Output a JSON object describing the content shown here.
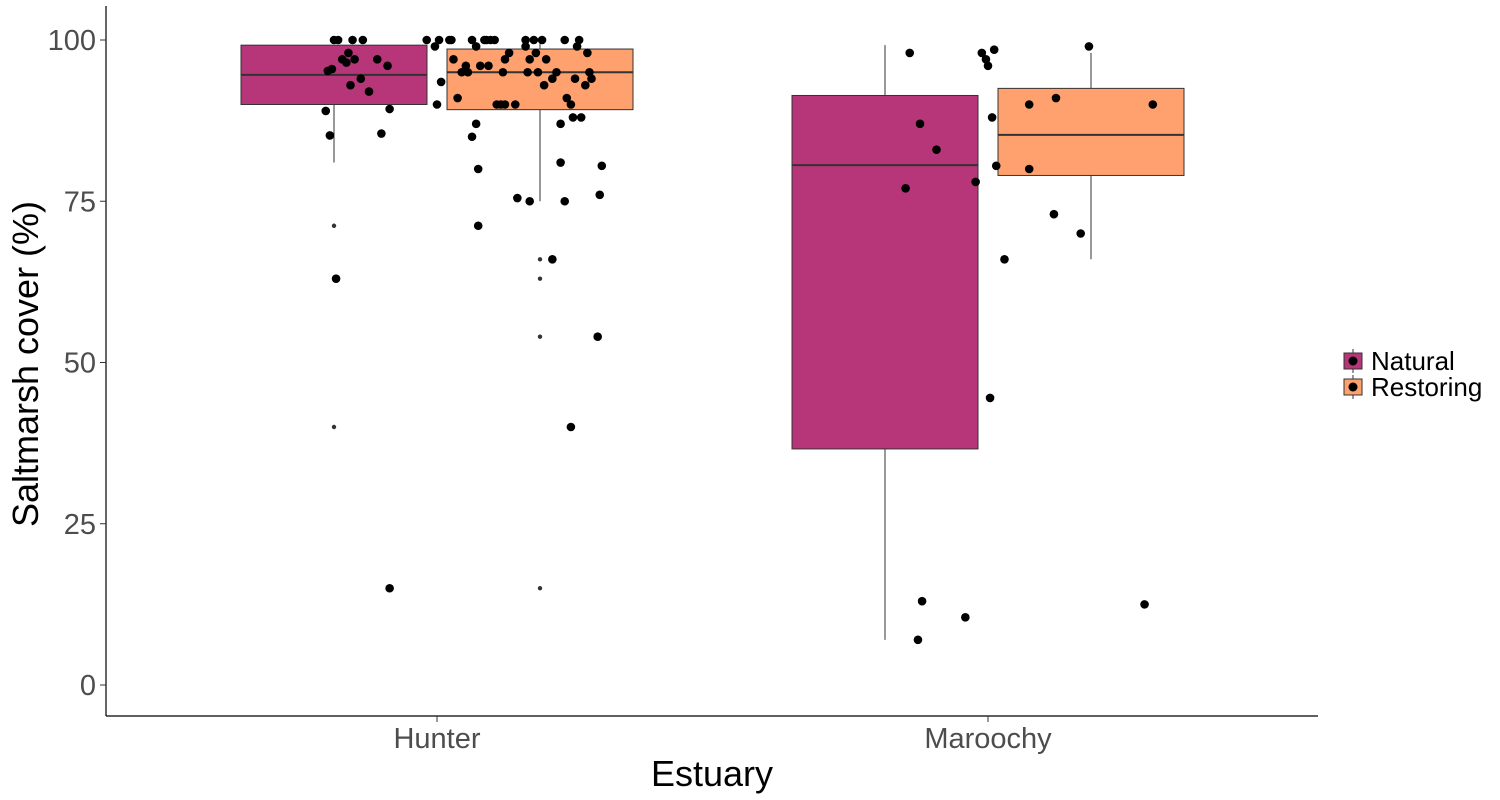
{
  "chart_data": {
    "type": "box",
    "xlabel": "Estuary",
    "ylabel": "Saltmarsh cover (%)",
    "categories": [
      "Hunter",
      "Maroochy"
    ],
    "ylim": [
      -5,
      105
    ],
    "yticks": [
      0,
      25,
      50,
      75,
      100
    ],
    "grid": false,
    "legend_position": "right",
    "legend": {
      "entries": [
        "Natural",
        "Restoring"
      ]
    },
    "colors": {
      "Natural": "#b63679",
      "Restoring": "#fea16e",
      "points": "#000000",
      "axis": "#000000",
      "tick_text": "#4d4d4d"
    },
    "series": [
      {
        "name": "Natural",
        "boxes": [
          {
            "category": "Hunter",
            "q1": 90,
            "median": 94.6,
            "q3": 99.2,
            "whisker_low": 81,
            "whisker_high": 99.2,
            "outliers": [
              71.2,
              40
            ]
          },
          {
            "category": "Maroochy",
            "q1": 36.6,
            "median": 80.6,
            "q3": 91.4,
            "whisker_low": 7,
            "whisker_high": 99.2,
            "outliers": []
          }
        ]
      },
      {
        "name": "Restoring",
        "boxes": [
          {
            "category": "Hunter",
            "q1": 89.2,
            "median": 95.0,
            "q3": 98.6,
            "whisker_low": 75,
            "whisker_high": 100,
            "outliers": [
              66,
              63,
              54,
              15
            ]
          },
          {
            "category": "Maroochy",
            "q1": 79,
            "median": 85.3,
            "q3": 92.5,
            "whisker_low": 66,
            "whisker_high": 98,
            "outliers": []
          }
        ]
      }
    ],
    "jitter_points": [
      {
        "category": "Hunter",
        "x": -0.5,
        "y": 100
      },
      {
        "category": "Hunter",
        "x": -0.48,
        "y": 100
      },
      {
        "category": "Hunter",
        "x": -0.46,
        "y": 97
      },
      {
        "category": "Hunter",
        "x": -0.44,
        "y": 96.5
      },
      {
        "category": "Hunter",
        "x": -0.43,
        "y": 98
      },
      {
        "category": "Hunter",
        "x": -0.42,
        "y": 93
      },
      {
        "category": "Hunter",
        "x": -0.41,
        "y": 100
      },
      {
        "category": "Hunter",
        "x": -0.4,
        "y": 97
      },
      {
        "category": "Hunter",
        "x": -0.37,
        "y": 94
      },
      {
        "category": "Hunter",
        "x": -0.36,
        "y": 100
      },
      {
        "category": "Hunter",
        "x": -0.33,
        "y": 92
      },
      {
        "category": "Hunter",
        "x": -0.29,
        "y": 97
      },
      {
        "category": "Hunter",
        "x": -0.27,
        "y": 85.5
      },
      {
        "category": "Hunter",
        "x": -0.24,
        "y": 96
      },
      {
        "category": "Hunter",
        "x": -0.23,
        "y": 89.3
      },
      {
        "category": "Hunter",
        "x": -0.23,
        "y": 15
      },
      {
        "category": "Hunter",
        "x": -0.53,
        "y": 95.2
      },
      {
        "category": "Hunter",
        "x": -0.54,
        "y": 89
      },
      {
        "category": "Hunter",
        "x": -0.52,
        "y": 85.2
      },
      {
        "category": "Hunter",
        "x": -0.51,
        "y": 95.5
      },
      {
        "category": "Hunter",
        "x": -0.49,
        "y": 63
      },
      {
        "category": "Hunter",
        "x": -0.05,
        "y": 100
      },
      {
        "category": "Hunter",
        "x": -0.01,
        "y": 99
      },
      {
        "category": "Hunter",
        "x": 0.01,
        "y": 100
      },
      {
        "category": "Hunter",
        "x": 0.0,
        "y": 90
      },
      {
        "category": "Hunter",
        "x": 0.02,
        "y": 93.5
      },
      {
        "category": "Hunter",
        "x": 0.06,
        "y": 100
      },
      {
        "category": "Hunter",
        "x": 0.07,
        "y": 100
      },
      {
        "category": "Hunter",
        "x": 0.08,
        "y": 97
      },
      {
        "category": "Hunter",
        "x": 0.1,
        "y": 91
      },
      {
        "category": "Hunter",
        "x": 0.12,
        "y": 95
      },
      {
        "category": "Hunter",
        "x": 0.14,
        "y": 96
      },
      {
        "category": "Hunter",
        "x": 0.15,
        "y": 95
      },
      {
        "category": "Hunter",
        "x": 0.17,
        "y": 85
      },
      {
        "category": "Hunter",
        "x": 0.19,
        "y": 99
      },
      {
        "category": "Hunter",
        "x": 0.17,
        "y": 100
      },
      {
        "category": "Hunter",
        "x": 0.19,
        "y": 87
      },
      {
        "category": "Hunter",
        "x": 0.2,
        "y": 80
      },
      {
        "category": "Hunter",
        "x": 0.2,
        "y": 71.2
      },
      {
        "category": "Hunter",
        "x": 0.21,
        "y": 96
      },
      {
        "category": "Hunter",
        "x": 0.23,
        "y": 100
      },
      {
        "category": "Hunter",
        "x": 0.24,
        "y": 100
      },
      {
        "category": "Hunter",
        "x": 0.25,
        "y": 96
      },
      {
        "category": "Hunter",
        "x": 0.26,
        "y": 100
      },
      {
        "category": "Hunter",
        "x": 0.28,
        "y": 100
      },
      {
        "category": "Hunter",
        "x": 0.29,
        "y": 90
      },
      {
        "category": "Hunter",
        "x": 0.31,
        "y": 90
      },
      {
        "category": "Hunter",
        "x": 0.32,
        "y": 95
      },
      {
        "category": "Hunter",
        "x": 0.33,
        "y": 97
      },
      {
        "category": "Hunter",
        "x": 0.33,
        "y": 90
      },
      {
        "category": "Hunter",
        "x": 0.35,
        "y": 98
      },
      {
        "category": "Hunter",
        "x": 0.38,
        "y": 90
      },
      {
        "category": "Hunter",
        "x": 0.39,
        "y": 75.5
      },
      {
        "category": "Hunter",
        "x": 0.43,
        "y": 100
      },
      {
        "category": "Hunter",
        "x": 0.43,
        "y": 99
      },
      {
        "category": "Hunter",
        "x": 0.44,
        "y": 95
      },
      {
        "category": "Hunter",
        "x": 0.45,
        "y": 97
      },
      {
        "category": "Hunter",
        "x": 0.45,
        "y": 75
      },
      {
        "category": "Hunter",
        "x": 0.47,
        "y": 100
      },
      {
        "category": "Hunter",
        "x": 0.48,
        "y": 98
      },
      {
        "category": "Hunter",
        "x": 0.49,
        "y": 95
      },
      {
        "category": "Hunter",
        "x": 0.51,
        "y": 100
      },
      {
        "category": "Hunter",
        "x": 0.52,
        "y": 93
      },
      {
        "category": "Hunter",
        "x": 0.53,
        "y": 97
      },
      {
        "category": "Hunter",
        "x": 0.56,
        "y": 66
      },
      {
        "category": "Hunter",
        "x": 0.56,
        "y": 94
      },
      {
        "category": "Hunter",
        "x": 0.58,
        "y": 95
      },
      {
        "category": "Hunter",
        "x": 0.6,
        "y": 87
      },
      {
        "category": "Hunter",
        "x": 0.6,
        "y": 81
      },
      {
        "category": "Hunter",
        "x": 0.62,
        "y": 75
      },
      {
        "category": "Hunter",
        "x": 0.62,
        "y": 100
      },
      {
        "category": "Hunter",
        "x": 0.63,
        "y": 91
      },
      {
        "category": "Hunter",
        "x": 0.65,
        "y": 90
      },
      {
        "category": "Hunter",
        "x": 0.65,
        "y": 40
      },
      {
        "category": "Hunter",
        "x": 0.66,
        "y": 88
      },
      {
        "category": "Hunter",
        "x": 0.67,
        "y": 94
      },
      {
        "category": "Hunter",
        "x": 0.68,
        "y": 99
      },
      {
        "category": "Hunter",
        "x": 0.69,
        "y": 100
      },
      {
        "category": "Hunter",
        "x": 0.7,
        "y": 88
      },
      {
        "category": "Hunter",
        "x": 0.72,
        "y": 93
      },
      {
        "category": "Hunter",
        "x": 0.73,
        "y": 98
      },
      {
        "category": "Hunter",
        "x": 0.74,
        "y": 95
      },
      {
        "category": "Hunter",
        "x": 0.75,
        "y": 94
      },
      {
        "category": "Hunter",
        "x": 0.78,
        "y": 54
      },
      {
        "category": "Hunter",
        "x": 0.79,
        "y": 76
      },
      {
        "category": "Hunter",
        "x": 0.8,
        "y": 80.5
      },
      {
        "category": "Maroochy",
        "x": -0.4,
        "y": 77
      },
      {
        "category": "Maroochy",
        "x": -0.38,
        "y": 98
      },
      {
        "category": "Maroochy",
        "x": -0.34,
        "y": 7
      },
      {
        "category": "Maroochy",
        "x": -0.33,
        "y": 87
      },
      {
        "category": "Maroochy",
        "x": -0.32,
        "y": 13
      },
      {
        "category": "Maroochy",
        "x": -0.25,
        "y": 83
      },
      {
        "category": "Maroochy",
        "x": -0.11,
        "y": 10.5
      },
      {
        "category": "Maroochy",
        "x": -0.06,
        "y": 78
      },
      {
        "category": "Maroochy",
        "x": -0.03,
        "y": 98
      },
      {
        "category": "Maroochy",
        "x": -0.01,
        "y": 97
      },
      {
        "category": "Maroochy",
        "x": 0.0,
        "y": 96
      },
      {
        "category": "Maroochy",
        "x": 0.01,
        "y": 44.5
      },
      {
        "category": "Maroochy",
        "x": 0.02,
        "y": 88
      },
      {
        "category": "Maroochy",
        "x": 0.03,
        "y": 98.5
      },
      {
        "category": "Maroochy",
        "x": 0.04,
        "y": 80.5
      },
      {
        "category": "Maroochy",
        "x": 0.08,
        "y": 66
      },
      {
        "category": "Maroochy",
        "x": 0.2,
        "y": 90
      },
      {
        "category": "Maroochy",
        "x": 0.2,
        "y": 80
      },
      {
        "category": "Maroochy",
        "x": 0.32,
        "y": 73
      },
      {
        "category": "Maroochy",
        "x": 0.33,
        "y": 91
      },
      {
        "category": "Maroochy",
        "x": 0.45,
        "y": 70
      },
      {
        "category": "Maroochy",
        "x": 0.49,
        "y": 99
      },
      {
        "category": "Maroochy",
        "x": 0.76,
        "y": 12.5
      },
      {
        "category": "Maroochy",
        "x": 0.8,
        "y": 90
      }
    ]
  }
}
